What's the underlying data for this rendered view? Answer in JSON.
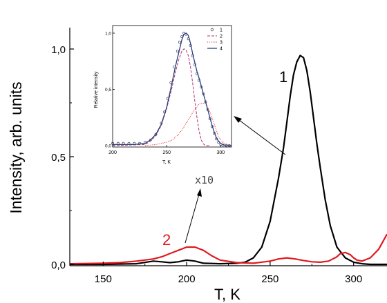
{
  "chart_data": [
    {
      "type": "line",
      "xlabel": "T, K",
      "ylabel": "Intensity, arb. units",
      "xlim": [
        130,
        320
      ],
      "ylim": [
        0,
        1.0
      ],
      "xticks": [
        150,
        200,
        250,
        300
      ],
      "xtick_labels": [
        "150",
        "200",
        "250",
        "300"
      ],
      "yticks": [
        0.0,
        0.5,
        1.0
      ],
      "ytick_labels": [
        "0,0",
        "0,5",
        "1,0"
      ],
      "grid": false,
      "colors": {
        "series_1": "#000000",
        "series_2": "#e0191f",
        "axes": "#000000"
      },
      "series": [
        {
          "label": "1",
          "x": [
            130,
            150,
            170,
            180,
            185,
            190,
            195,
            200,
            205,
            210,
            220,
            230,
            235,
            240,
            245,
            250,
            255,
            258,
            260,
            262,
            264,
            266,
            268,
            270,
            272,
            274,
            276,
            278,
            280,
            283,
            286,
            290,
            295,
            300,
            305,
            310,
            320
          ],
          "y": [
            0.0,
            0.0,
            0.003,
            0.015,
            0.012,
            0.008,
            0.012,
            0.02,
            0.015,
            0.005,
            0.003,
            0.005,
            0.01,
            0.03,
            0.08,
            0.2,
            0.4,
            0.54,
            0.66,
            0.78,
            0.88,
            0.94,
            0.97,
            0.96,
            0.9,
            0.8,
            0.68,
            0.56,
            0.45,
            0.3,
            0.18,
            0.08,
            0.03,
            0.01,
            0.003,
            0.0,
            0.0
          ]
        },
        {
          "label": "2",
          "x": [
            130,
            150,
            160,
            170,
            180,
            185,
            190,
            195,
            200,
            205,
            210,
            215,
            220,
            230,
            240,
            250,
            255,
            260,
            265,
            270,
            275,
            280,
            285,
            290,
            292,
            295,
            298,
            300,
            302,
            305,
            310,
            315,
            320
          ],
          "y": [
            0.003,
            0.005,
            0.008,
            0.015,
            0.025,
            0.035,
            0.05,
            0.065,
            0.08,
            0.08,
            0.065,
            0.04,
            0.02,
            0.008,
            0.005,
            0.015,
            0.025,
            0.03,
            0.025,
            0.018,
            0.012,
            0.01,
            0.015,
            0.035,
            0.05,
            0.055,
            0.045,
            0.03,
            0.02,
            0.015,
            0.03,
            0.07,
            0.14
          ]
        }
      ],
      "annotations": [
        {
          "text": "1",
          "near_x": 258,
          "near_y": 0.86
        },
        {
          "text": "2",
          "near_x": 187,
          "near_y": 0.11
        },
        {
          "text": "x10",
          "near_x": 206,
          "near_y": 0.38
        }
      ]
    },
    {
      "type": "line",
      "inset": true,
      "xlabel": "T, K",
      "ylabel": "Relative intensity",
      "xlim": [
        200,
        310
      ],
      "ylim": [
        0,
        1.0
      ],
      "xticks": [
        200,
        250,
        300
      ],
      "xtick_labels": [
        "200",
        "250",
        "300"
      ],
      "yticks": [
        0.0,
        0.5,
        1.0
      ],
      "ytick_labels": [
        "0,0",
        "0,5",
        "1,0"
      ],
      "legend_position": "top-right",
      "colors": {
        "1": "#4a4a6a",
        "2": "#a8326e",
        "3": "#e0191f",
        "4": "#2a3f7a"
      },
      "series": [
        {
          "name": "1",
          "style": "open-circles",
          "x": [
            200,
            205,
            210,
            215,
            220,
            225,
            230,
            235,
            240,
            245,
            248,
            251,
            254,
            257,
            260,
            262,
            264,
            266,
            268,
            270,
            272,
            274,
            276,
            278,
            280,
            282,
            284,
            286,
            288,
            290,
            292,
            294,
            296,
            298,
            300,
            302,
            305,
            308
          ],
          "y": [
            0.02,
            0.02,
            0.02,
            0.02,
            0.02,
            0.02,
            0.03,
            0.05,
            0.1,
            0.2,
            0.3,
            0.42,
            0.56,
            0.7,
            0.84,
            0.92,
            0.97,
            1.0,
            0.99,
            0.95,
            0.89,
            0.8,
            0.72,
            0.64,
            0.58,
            0.52,
            0.46,
            0.39,
            0.32,
            0.24,
            0.17,
            0.11,
            0.06,
            0.03,
            0.01,
            0.005,
            0.0,
            0.0
          ]
        },
        {
          "name": "2",
          "style": "dash",
          "x": [
            200,
            230,
            235,
            240,
            245,
            250,
            255,
            258,
            261,
            264,
            266,
            268,
            270,
            272,
            274,
            276,
            278,
            280,
            282,
            284,
            286,
            290
          ],
          "y": [
            0.0,
            0.01,
            0.04,
            0.09,
            0.18,
            0.33,
            0.52,
            0.65,
            0.76,
            0.84,
            0.86,
            0.85,
            0.8,
            0.7,
            0.56,
            0.4,
            0.25,
            0.13,
            0.05,
            0.015,
            0.0,
            0.0
          ]
        },
        {
          "name": "3",
          "style": "dot",
          "x": [
            230,
            240,
            250,
            255,
            260,
            265,
            270,
            275,
            280,
            283,
            286,
            290,
            294,
            298,
            302,
            306,
            310
          ],
          "y": [
            0.0,
            0.01,
            0.03,
            0.05,
            0.09,
            0.15,
            0.23,
            0.31,
            0.37,
            0.38,
            0.37,
            0.3,
            0.19,
            0.08,
            0.03,
            0.01,
            0.0
          ]
        },
        {
          "name": "4",
          "style": "solid",
          "x": [
            200,
            210,
            220,
            230,
            235,
            240,
            245,
            250,
            255,
            258,
            261,
            264,
            266,
            268,
            270,
            272,
            274,
            276,
            278,
            280,
            282,
            284,
            286,
            288,
            290,
            292,
            294,
            296,
            298,
            300,
            302,
            305,
            310
          ],
          "y": [
            0.01,
            0.01,
            0.01,
            0.02,
            0.05,
            0.1,
            0.19,
            0.34,
            0.56,
            0.7,
            0.82,
            0.94,
            0.99,
            1.0,
            0.98,
            0.91,
            0.82,
            0.74,
            0.66,
            0.6,
            0.53,
            0.46,
            0.39,
            0.32,
            0.25,
            0.18,
            0.12,
            0.07,
            0.04,
            0.02,
            0.01,
            0.0,
            0.0
          ]
        }
      ]
    }
  ]
}
